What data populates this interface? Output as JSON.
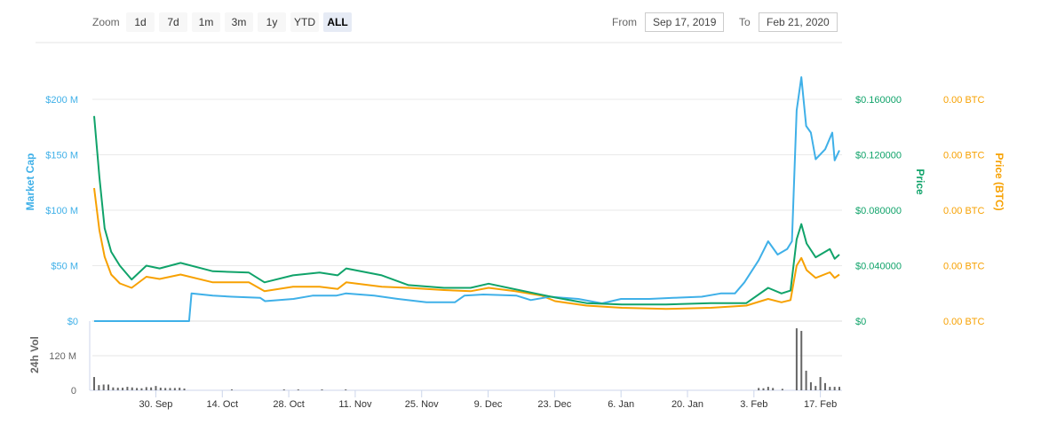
{
  "toolbar": {
    "zoom_label": "Zoom",
    "ranges": [
      "1d",
      "7d",
      "1m",
      "3m",
      "1y",
      "YTD",
      "ALL"
    ],
    "active_range": "ALL",
    "from_label": "From",
    "from_value": "Sep 17, 2019",
    "to_label": "To",
    "to_value": "Feb 21, 2020"
  },
  "colors": {
    "market_cap": "#3fb0e8",
    "price": "#10a36a",
    "price_btc": "#f7a102",
    "volume": "#666666"
  },
  "chart_data": {
    "type": "line",
    "start_date": "2019-09-17",
    "x_unit": "days since start",
    "x_range": [
      0,
      157
    ],
    "x_ticks": [
      {
        "day": 13,
        "label": "30. Sep"
      },
      {
        "day": 27,
        "label": "14. Oct"
      },
      {
        "day": 41,
        "label": "28. Oct"
      },
      {
        "day": 55,
        "label": "11. Nov"
      },
      {
        "day": 69,
        "label": "25. Nov"
      },
      {
        "day": 83,
        "label": "9. Dec"
      },
      {
        "day": 97,
        "label": "23. Dec"
      },
      {
        "day": 111,
        "label": "6. Jan"
      },
      {
        "day": 125,
        "label": "20. Jan"
      },
      {
        "day": 139,
        "label": "3. Feb"
      },
      {
        "day": 153,
        "label": "17. Feb"
      }
    ],
    "axes": {
      "market_cap": {
        "title": "Market Cap",
        "range": [
          0,
          200
        ],
        "unit": "M",
        "ticks": [
          "$0",
          "$50 M",
          "$100 M",
          "$150 M",
          "$200 M"
        ]
      },
      "price": {
        "title": "Price",
        "range": [
          0,
          0.16
        ],
        "ticks": [
          "$0",
          "$0.040000",
          "$0.080000",
          "$0.120000",
          "$0.160000"
        ]
      },
      "price_btc": {
        "title": "Price (BTC)",
        "range": [
          0,
          2e-05
        ],
        "ticks": [
          "0.00 BTC",
          "0.00 BTC",
          "0.00 BTC",
          "0.00 BTC",
          "0.00 BTC"
        ]
      },
      "volume": {
        "title": "24h Vol",
        "range": [
          0,
          240
        ],
        "ticks": [
          "0",
          "120 M"
        ]
      }
    },
    "series": [
      {
        "name": "Market Cap",
        "unit": "M USD",
        "days": [
          0,
          20,
          20.5,
          25,
          29,
          35,
          36,
          42,
          46,
          51,
          53,
          59,
          64,
          70,
          76,
          78,
          82,
          89,
          92,
          96,
          102,
          107,
          111,
          117,
          122,
          128,
          132,
          135,
          137,
          140,
          142,
          144,
          146,
          147,
          148,
          149,
          150,
          151,
          152,
          154,
          155.5,
          156,
          157
        ],
        "values": [
          0,
          0,
          25,
          23,
          22,
          21,
          18,
          20,
          23,
          23,
          25,
          23,
          20,
          17,
          17,
          23,
          24,
          23,
          19,
          22,
          20,
          16,
          20,
          20,
          21,
          22,
          25,
          25,
          35,
          55,
          72,
          60,
          65,
          72,
          190,
          220,
          176,
          170,
          146,
          155,
          170,
          145,
          154
        ]
      },
      {
        "name": "Price",
        "unit": "USD",
        "days": [
          0,
          1.1,
          2.2,
          3.6,
          5.4,
          7.9,
          11,
          13.8,
          18.2,
          25,
          32.6,
          35.9,
          41.9,
          47.5,
          51.3,
          53.1,
          60.6,
          66.2,
          73.7,
          79.3,
          83.1,
          88.7,
          94.3,
          97.1,
          103.7,
          111.2,
          120.5,
          129.9,
          137.4,
          142,
          144.8,
          146.7,
          148,
          149,
          150.1,
          152,
          155,
          156,
          157
        ],
        "values": [
          0.148,
          0.104,
          0.067,
          0.05,
          0.04,
          0.03,
          0.04,
          0.038,
          0.042,
          0.036,
          0.035,
          0.028,
          0.033,
          0.035,
          0.033,
          0.038,
          0.033,
          0.026,
          0.024,
          0.024,
          0.027,
          0.023,
          0.019,
          0.017,
          0.013,
          0.012,
          0.012,
          0.013,
          0.013,
          0.024,
          0.02,
          0.022,
          0.059,
          0.07,
          0.056,
          0.046,
          0.052,
          0.045,
          0.048
        ]
      },
      {
        "name": "Price (BTC)",
        "unit": "BTC",
        "days": [
          0,
          1.1,
          2.2,
          3.6,
          5.4,
          7.9,
          11,
          13.8,
          18.2,
          25,
          32.6,
          35.9,
          41.9,
          47.5,
          51.3,
          53.1,
          60.6,
          66.2,
          73.7,
          79.3,
          83.1,
          88.7,
          94.3,
          97.1,
          103.7,
          111.2,
          120.5,
          129.9,
          137.4,
          142,
          144.8,
          146.7,
          148,
          149,
          150.1,
          152,
          155,
          156,
          157
        ],
        "values": [
          1.2e-05,
          8.2e-06,
          5.8e-06,
          4.2e-06,
          3.4e-06,
          3e-06,
          4e-06,
          3.8e-06,
          4.2e-06,
          3.5e-06,
          3.5e-06,
          2.7e-06,
          3.1e-06,
          3.1e-06,
          2.9e-06,
          3.5e-06,
          3.1e-06,
          3e-06,
          2.8e-06,
          2.7e-06,
          3e-06,
          2.7e-06,
          2.3e-06,
          1.8e-06,
          1.4e-06,
          1.2e-06,
          1.1e-06,
          1.2e-06,
          1.4e-06,
          2e-06,
          1.7e-06,
          1.9e-06,
          5e-06,
          5.7e-06,
          4.6e-06,
          3.9e-06,
          4.4e-06,
          3.9e-06,
          4.2e-06
        ]
      },
      {
        "name": "24h Vol",
        "unit": "M USD",
        "type": "bar",
        "days": [
          0,
          1,
          2,
          3,
          4,
          5,
          6,
          7,
          8,
          9,
          10,
          11,
          12,
          13,
          14,
          15,
          16,
          17,
          18,
          19,
          29,
          40,
          43,
          48,
          53,
          140,
          141,
          142,
          143,
          145,
          148,
          149,
          150,
          151,
          152,
          153,
          154,
          155,
          156,
          157
        ],
        "values": [
          46,
          18,
          20,
          20,
          10,
          9,
          9,
          12,
          10,
          8,
          7,
          11,
          10,
          15,
          9,
          8,
          8,
          8,
          9,
          6,
          3,
          3,
          3,
          3,
          3,
          8,
          7,
          12,
          8,
          5,
          215,
          206,
          68,
          28,
          15,
          46,
          25,
          12,
          12,
          12
        ]
      }
    ]
  }
}
